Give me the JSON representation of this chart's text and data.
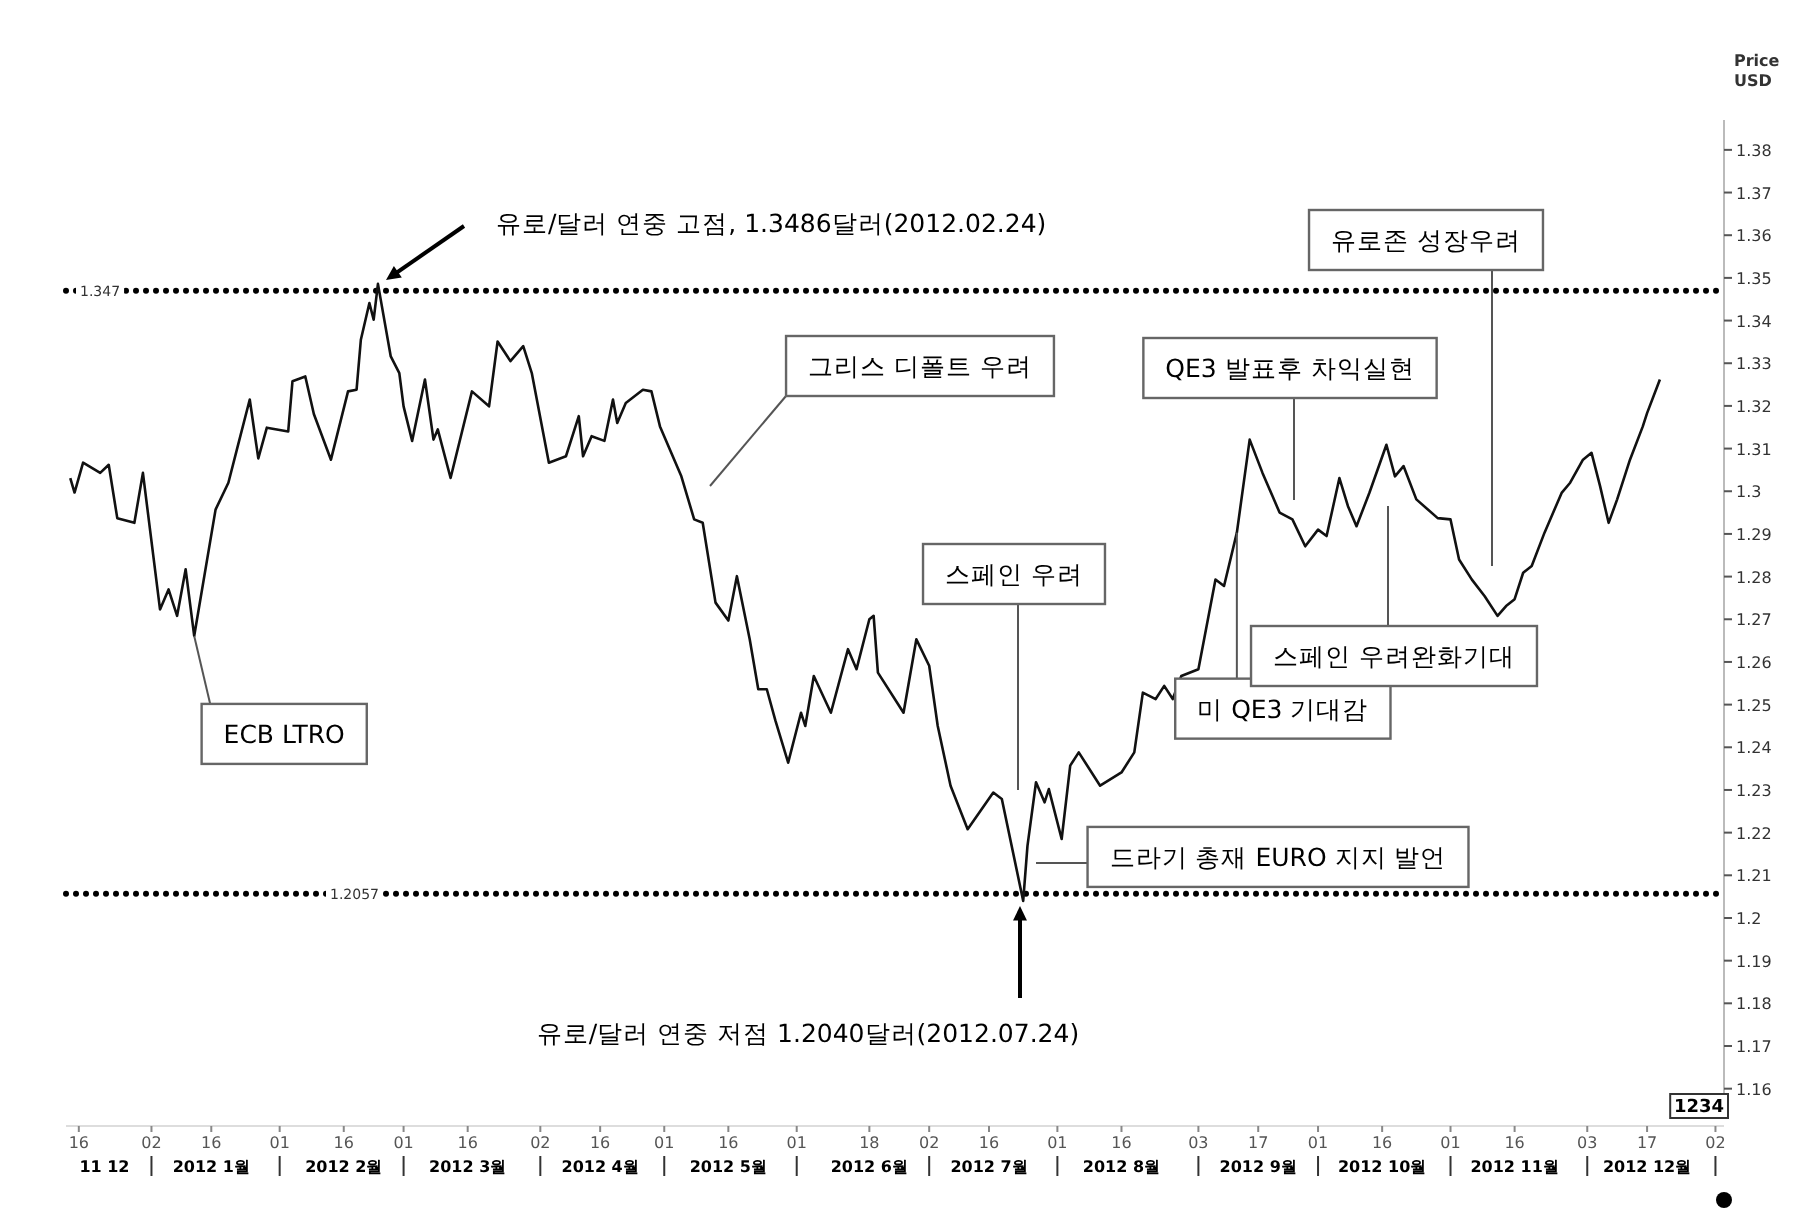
{
  "chart_data": {
    "type": "line",
    "ylabel": "Price USD",
    "xlim": [
      "2011-12-13",
      "2013-01-04"
    ],
    "ylim": [
      1.155,
      1.387
    ],
    "yticks": [
      1.16,
      1.17,
      1.18,
      1.19,
      1.2,
      1.21,
      1.22,
      1.23,
      1.24,
      1.25,
      1.26,
      1.27,
      1.28,
      1.29,
      1.3,
      1.31,
      1.32,
      1.33,
      1.34,
      1.35,
      1.36,
      1.37,
      1.38
    ],
    "xticks": [
      {
        "value": "2011-12-16",
        "label": "16"
      },
      {
        "value": "2012-01-02",
        "label": "02"
      },
      {
        "value": "2012-01-16",
        "label": "16"
      },
      {
        "value": "2012-02-01",
        "label": "01"
      },
      {
        "value": "2012-02-16",
        "label": "16"
      },
      {
        "value": "2012-03-01",
        "label": "01"
      },
      {
        "value": "2012-03-16",
        "label": "16"
      },
      {
        "value": "2012-04-02",
        "label": "02"
      },
      {
        "value": "2012-04-16",
        "label": "16"
      },
      {
        "value": "2012-05-01",
        "label": "01"
      },
      {
        "value": "2012-05-16",
        "label": "16"
      },
      {
        "value": "2012-06-01",
        "label": "01"
      },
      {
        "value": "2012-06-18",
        "label": "18"
      },
      {
        "value": "2012-07-02",
        "label": "02"
      },
      {
        "value": "2012-07-16",
        "label": "16"
      },
      {
        "value": "2012-08-01",
        "label": "01"
      },
      {
        "value": "2012-08-16",
        "label": "16"
      },
      {
        "value": "2012-09-03",
        "label": "03"
      },
      {
        "value": "2012-09-17",
        "label": "17"
      },
      {
        "value": "2012-10-01",
        "label": "01"
      },
      {
        "value": "2012-10-16",
        "label": "16"
      },
      {
        "value": "2012-11-01",
        "label": "01"
      },
      {
        "value": "2012-11-16",
        "label": "16"
      },
      {
        "value": "2012-12-03",
        "label": "03"
      },
      {
        "value": "2012-12-17",
        "label": "17"
      },
      {
        "value": "2013-01-02",
        "label": "02"
      }
    ],
    "x2lim": [
      "2011-12-13",
      "2013-01-04"
    ],
    "x2ticks": [
      {
        "value": "2011-12-22",
        "label": "11 12"
      },
      {
        "value": "2012-01-16",
        "label": "2012 1월"
      },
      {
        "value": "2012-02-16",
        "label": "2012 2월"
      },
      {
        "value": "2012-03-16",
        "label": "2012 3월"
      },
      {
        "value": "2012-04-16",
        "label": "2012 4월"
      },
      {
        "value": "2012-05-16",
        "label": "2012 5월"
      },
      {
        "value": "2012-06-18",
        "label": "2012 6월"
      },
      {
        "value": "2012-07-16",
        "label": "2012 7월"
      },
      {
        "value": "2012-08-16",
        "label": "2012 8월"
      },
      {
        "value": "2012-09-17",
        "label": "2012 9월"
      },
      {
        "value": "2012-10-16",
        "label": "2012 10월"
      },
      {
        "value": "2012-11-16",
        "label": "2012 11월"
      },
      {
        "value": "2012-12-17",
        "label": "2012 12월"
      }
    ],
    "series": [
      {
        "color": "#111111",
        "x": [
          "2011-12-14",
          "2011-12-15",
          "2011-12-17",
          "2011-12-21",
          "2011-12-23",
          "2011-12-25",
          "2011-12-29",
          "2011-12-31",
          "2012-01-04",
          "2012-01-06",
          "2012-01-08",
          "2012-01-10",
          "2012-01-12",
          "2012-01-17",
          "2012-01-20",
          "2012-01-22",
          "2012-01-25",
          "2012-01-27",
          "2012-01-29",
          "2012-02-03",
          "2012-02-04",
          "2012-02-07",
          "2012-02-09",
          "2012-02-13",
          "2012-02-17",
          "2012-02-19",
          "2012-02-20",
          "2012-02-22",
          "2012-02-23",
          "2012-02-24",
          "2012-02-27",
          "2012-02-29",
          "2012-03-01",
          "2012-03-03",
          "2012-03-06",
          "2012-03-08",
          "2012-03-09",
          "2012-03-12",
          "2012-03-17",
          "2012-03-21",
          "2012-03-23",
          "2012-03-26",
          "2012-03-29",
          "2012-03-31",
          "2012-04-04",
          "2012-04-08",
          "2012-04-11",
          "2012-04-12",
          "2012-04-14",
          "2012-04-17",
          "2012-04-19",
          "2012-04-20",
          "2012-04-22",
          "2012-04-26",
          "2012-04-28",
          "2012-04-30",
          "2012-05-05",
          "2012-05-08",
          "2012-05-10",
          "2012-05-13",
          "2012-05-16",
          "2012-05-18",
          "2012-05-21",
          "2012-05-23",
          "2012-05-25",
          "2012-05-27",
          "2012-05-30",
          "2012-06-02",
          "2012-06-03",
          "2012-06-05",
          "2012-06-09",
          "2012-06-13",
          "2012-06-15",
          "2012-06-18",
          "2012-06-19",
          "2012-06-20",
          "2012-06-26",
          "2012-06-29",
          "2012-07-02",
          "2012-07-04",
          "2012-07-07",
          "2012-07-11",
          "2012-07-17",
          "2012-07-19",
          "2012-07-24",
          "2012-07-25",
          "2012-07-27",
          "2012-07-29",
          "2012-07-30",
          "2012-08-02",
          "2012-08-04",
          "2012-08-06",
          "2012-08-11",
          "2012-08-16",
          "2012-08-19",
          "2012-08-21",
          "2012-08-24",
          "2012-08-26",
          "2012-08-28",
          "2012-08-30",
          "2012-09-03",
          "2012-09-07",
          "2012-09-09",
          "2012-09-12",
          "2012-09-15",
          "2012-09-18",
          "2012-09-22",
          "2012-09-25",
          "2012-09-28",
          "2012-10-01",
          "2012-10-03",
          "2012-10-06",
          "2012-10-08",
          "2012-10-10",
          "2012-10-13",
          "2012-10-17",
          "2012-10-19",
          "2012-10-21",
          "2012-10-24",
          "2012-10-29",
          "2012-11-01",
          "2012-11-03",
          "2012-11-06",
          "2012-11-09",
          "2012-11-12",
          "2012-11-14",
          "2012-11-16",
          "2012-11-18",
          "2012-11-20",
          "2012-11-23",
          "2012-11-27",
          "2012-11-29",
          "2012-12-02",
          "2012-12-04",
          "2012-12-06",
          "2012-12-08",
          "2012-12-10",
          "2012-12-13",
          "2012-12-16",
          "2012-12-17",
          "2012-12-20"
        ],
        "values": [
          1.3031,
          1.2997,
          1.3067,
          1.3043,
          1.3062,
          1.2937,
          1.2926,
          1.3043,
          1.2723,
          1.277,
          1.2708,
          1.2817,
          1.2661,
          1.2957,
          1.302,
          1.3098,
          1.3215,
          1.3077,
          1.3149,
          1.314,
          1.3258,
          1.3269,
          1.3181,
          1.3074,
          1.3234,
          1.3238,
          1.3355,
          1.3441,
          1.3402,
          1.3486,
          1.3316,
          1.3277,
          1.3199,
          1.3118,
          1.3262,
          1.3121,
          1.3145,
          1.3031,
          1.3234,
          1.3199,
          1.3351,
          1.3305,
          1.334,
          1.3277,
          1.3067,
          1.3082,
          1.3176,
          1.3082,
          1.3129,
          1.3118,
          1.3215,
          1.316,
          1.3207,
          1.3238,
          1.3234,
          1.3152,
          1.3035,
          1.2934,
          1.2926,
          1.2739,
          1.2697,
          1.2801,
          1.2653,
          1.2536,
          1.2536,
          1.2463,
          1.2364,
          1.2481,
          1.245,
          1.2567,
          1.2481,
          1.263,
          1.2583,
          1.27,
          1.2708,
          1.2575,
          1.2481,
          1.2653,
          1.2591,
          1.245,
          1.231,
          1.2208,
          1.2294,
          1.2279,
          1.204,
          1.2169,
          1.2318,
          1.2271,
          1.2302,
          1.2185,
          1.2357,
          1.2388,
          1.231,
          1.2341,
          1.2388,
          1.2528,
          1.2513,
          1.2544,
          1.2513,
          1.2567,
          1.2583,
          1.2793,
          1.2778,
          1.2903,
          1.3121,
          1.3043,
          1.295,
          1.2934,
          1.2871,
          1.291,
          1.2895,
          1.3031,
          1.2965,
          1.2918,
          1.2996,
          1.3109,
          1.3035,
          1.3059,
          1.2981,
          1.2937,
          1.2934,
          1.284,
          1.2793,
          1.2754,
          1.2708,
          1.2731,
          1.2747,
          1.2809,
          1.2825,
          1.2903,
          1.2996,
          1.302,
          1.3074,
          1.309,
          1.3012,
          1.2926,
          1.2981,
          1.3074,
          1.3152,
          1.3183,
          1.3262
        ]
      }
    ],
    "ref_lines": [
      {
        "axis": "y",
        "value": 1.347,
        "label": "1.347",
        "line_style": "dotted"
      },
      {
        "axis": "y",
        "value": 1.2057,
        "label": "1.2057",
        "line_style": "dotted"
      }
    ],
    "annotations": [
      "유로/달러 연중 고점, 1.3486달러(2012.02.24)",
      "유로/달러 연중 저점 1.2040달러(2012.07.24)",
      {
        "text": "ECB LTRO",
        "x": "2012-01-12",
        "y": 1.2661
      },
      "그리스 디폴트 우려",
      "스페인 우려",
      {
        "text": "드라기 총재 EURO 지지 발언",
        "x": "2012-07-27",
        "y": 1.2129
      },
      {
        "text": "미 QE3 기대감",
        "x": "2012-09-12",
        "y": 1.2903
      },
      "QE3 발표후 차익실현",
      "스페인 우려완화기대",
      "유로존 성장우려",
      "1234"
    ],
    "line_style": "solid",
    "marker": "none"
  }
}
